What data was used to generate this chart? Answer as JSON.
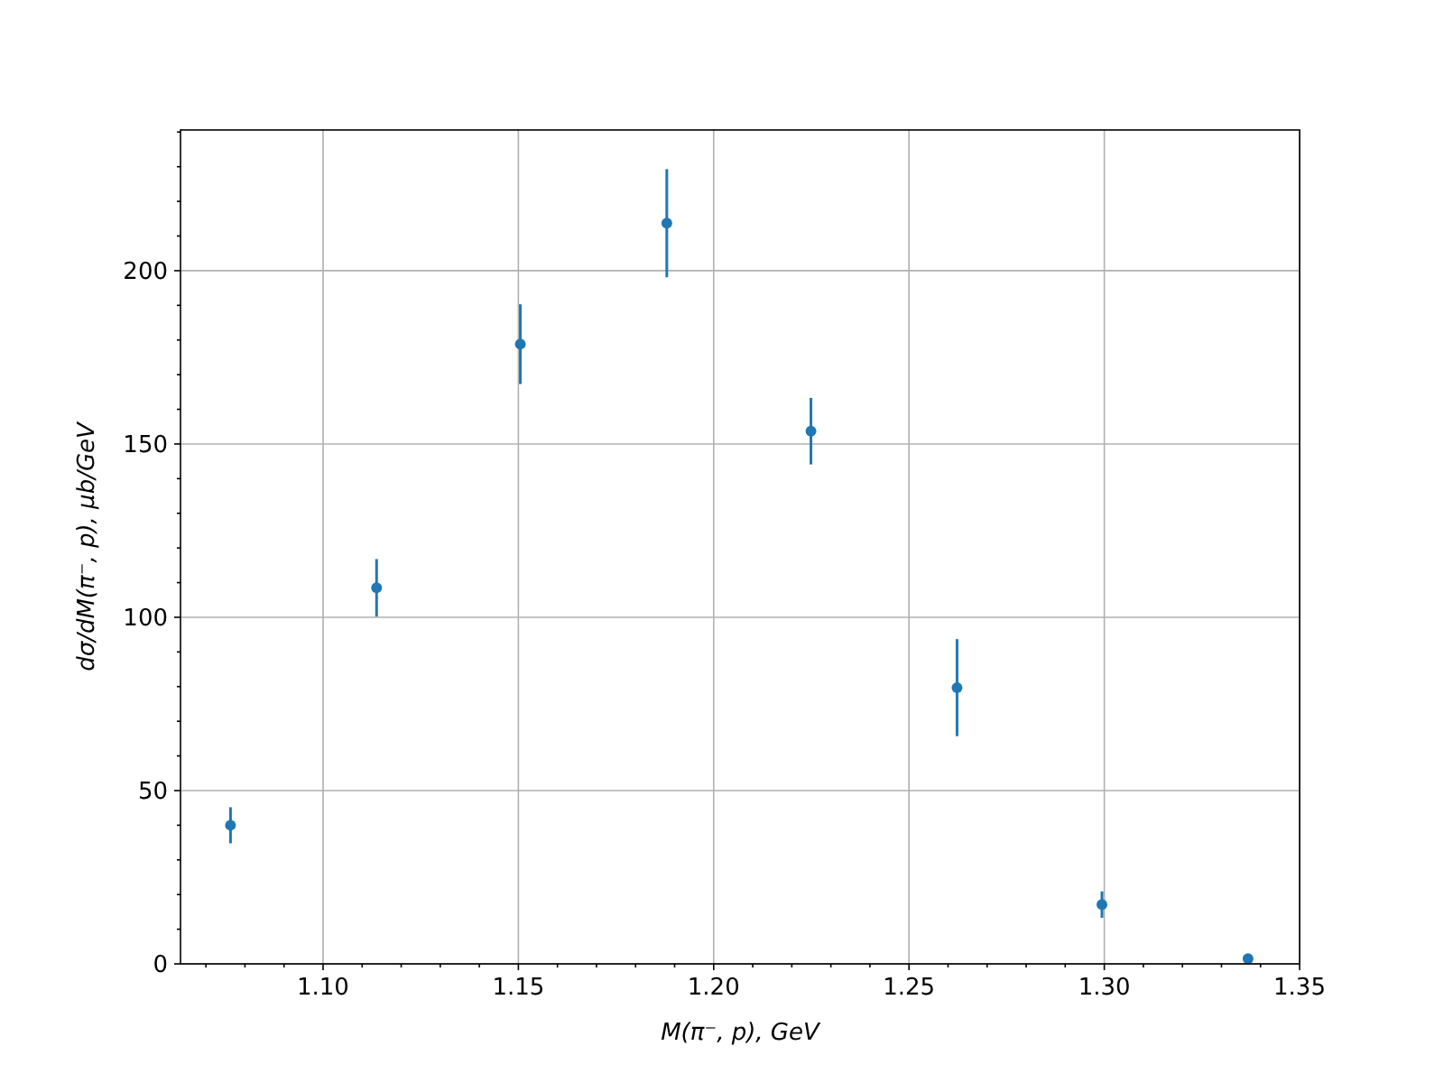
{
  "chart_data": {
    "type": "scatter",
    "xlabel": "M(π⁻, p), GeV",
    "ylabel": "dσ/dM(π⁻, p), μb/GeV",
    "x": [
      1.0763,
      1.1137,
      1.1505,
      1.188,
      1.2249,
      1.2623,
      1.2994,
      1.3368
    ],
    "series": [
      {
        "color": "#1f77b4",
        "values": [
          40.0,
          108.5,
          178.8,
          213.7,
          153.7,
          79.7,
          17.1,
          1.5
        ],
        "errors": [
          5.2,
          8.3,
          11.5,
          15.6,
          9.6,
          14,
          3.8,
          null
        ]
      }
    ],
    "xlim": [
      1.0635,
      1.35
    ],
    "ylim": [
      0,
      240.6
    ],
    "xticks": [
      {
        "value": 1.07,
        "label": null
      },
      {
        "value": 1.08,
        "label": null
      },
      {
        "value": 1.09,
        "label": null
      },
      {
        "value": 1.1,
        "label": "1.10"
      },
      {
        "value": 1.11,
        "label": null
      },
      {
        "value": 1.12,
        "label": null
      },
      {
        "value": 1.13,
        "label": null
      },
      {
        "value": 1.14,
        "label": null
      },
      {
        "value": 1.15,
        "label": "1.15"
      },
      {
        "value": 1.16,
        "label": null
      },
      {
        "value": 1.17,
        "label": null
      },
      {
        "value": 1.18,
        "label": null
      },
      {
        "value": 1.19,
        "label": null
      },
      {
        "value": 1.2,
        "label": "1.20"
      },
      {
        "value": 1.21,
        "label": null
      },
      {
        "value": 1.22,
        "label": null
      },
      {
        "value": 1.23,
        "label": null
      },
      {
        "value": 1.24,
        "label": null
      },
      {
        "value": 1.25,
        "label": "1.25"
      },
      {
        "value": 1.26,
        "label": null
      },
      {
        "value": 1.27,
        "label": null
      },
      {
        "value": 1.28,
        "label": null
      },
      {
        "value": 1.29,
        "label": null
      },
      {
        "value": 1.3,
        "label": "1.30"
      },
      {
        "value": 1.31,
        "label": null
      },
      {
        "value": 1.32,
        "label": null
      },
      {
        "value": 1.33,
        "label": null
      },
      {
        "value": 1.34,
        "label": null
      },
      {
        "value": 1.35,
        "label": "1.35"
      }
    ],
    "yticks": [
      0,
      {
        "value": 10,
        "label": null
      },
      {
        "value": 20,
        "label": null
      },
      {
        "value": 30,
        "label": null
      },
      {
        "value": 40,
        "label": null
      },
      50,
      {
        "value": 60,
        "label": null
      },
      {
        "value": 70,
        "label": null
      },
      {
        "value": 80,
        "label": null
      },
      {
        "value": 90,
        "label": null
      },
      100,
      {
        "value": 110,
        "label": null
      },
      {
        "value": 120,
        "label": null
      },
      {
        "value": 130,
        "label": null
      },
      {
        "value": 140,
        "label": null
      },
      150,
      {
        "value": 160,
        "label": null
      },
      {
        "value": 170,
        "label": null
      },
      {
        "value": 180,
        "label": null
      },
      {
        "value": 190,
        "label": null
      },
      200,
      {
        "value": 210,
        "label": null
      },
      {
        "value": 220,
        "label": null
      },
      {
        "value": 230,
        "label": null
      },
      {
        "value": 240,
        "label": null
      }
    ],
    "grid": true,
    "marker": "circle"
  }
}
